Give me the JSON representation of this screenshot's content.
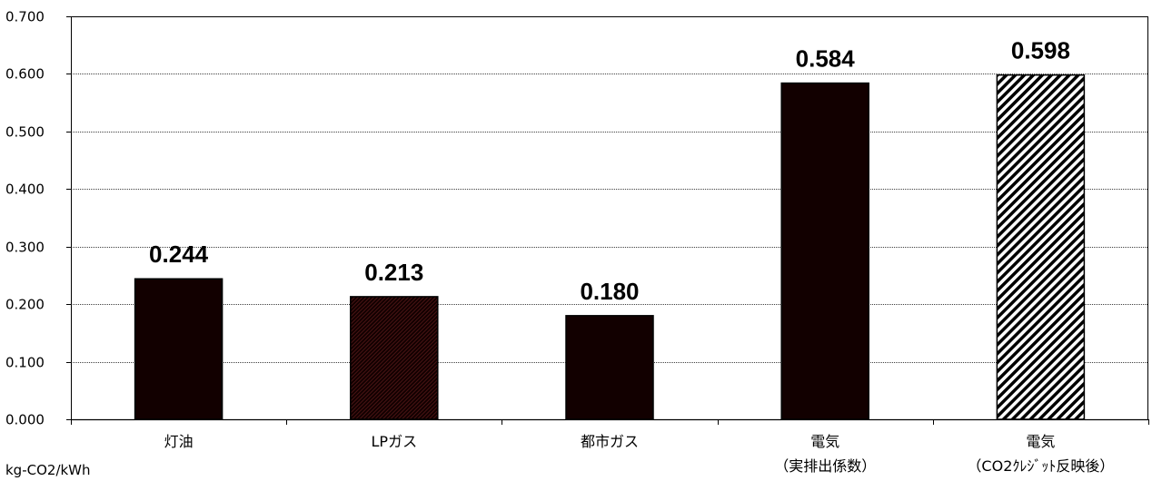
{
  "chart_data": {
    "type": "bar",
    "title": "",
    "xlabel": "",
    "ylabel": "kg-CO2/kWh",
    "ylim": [
      0,
      0.7
    ],
    "yticks": [
      0.0,
      0.1,
      0.2,
      0.3,
      0.4,
      0.5,
      0.6,
      0.7
    ],
    "ytick_labels": [
      "0.000",
      "0.100",
      "0.200",
      "0.300",
      "0.400",
      "0.500",
      "0.600",
      "0.700"
    ],
    "grid": true,
    "legend": "none",
    "categories": [
      {
        "line1": "灯油",
        "line2": ""
      },
      {
        "line1": "LPガス",
        "line2": ""
      },
      {
        "line1": "都市ガス",
        "line2": ""
      },
      {
        "line1": "電気",
        "line2": "（実排出係数）"
      },
      {
        "line1": "電気",
        "line2": "（CO2ｸﾚｼﾞｯﾄ反映後）"
      }
    ],
    "values": [
      0.244,
      0.213,
      0.18,
      0.584,
      0.598
    ],
    "value_labels": [
      "0.244",
      "0.213",
      "0.180",
      "0.584",
      "0.598"
    ],
    "bar_styles": [
      "solid",
      "dense-pattern",
      "solid",
      "solid",
      "hatched"
    ],
    "colors": {
      "bar_fill": "#120000",
      "bar_pattern_fill": "#2a0606",
      "hatch_line": "#000000",
      "hatch_bg": "#ffffff",
      "grid": "#000000",
      "axis": "#000000"
    }
  }
}
